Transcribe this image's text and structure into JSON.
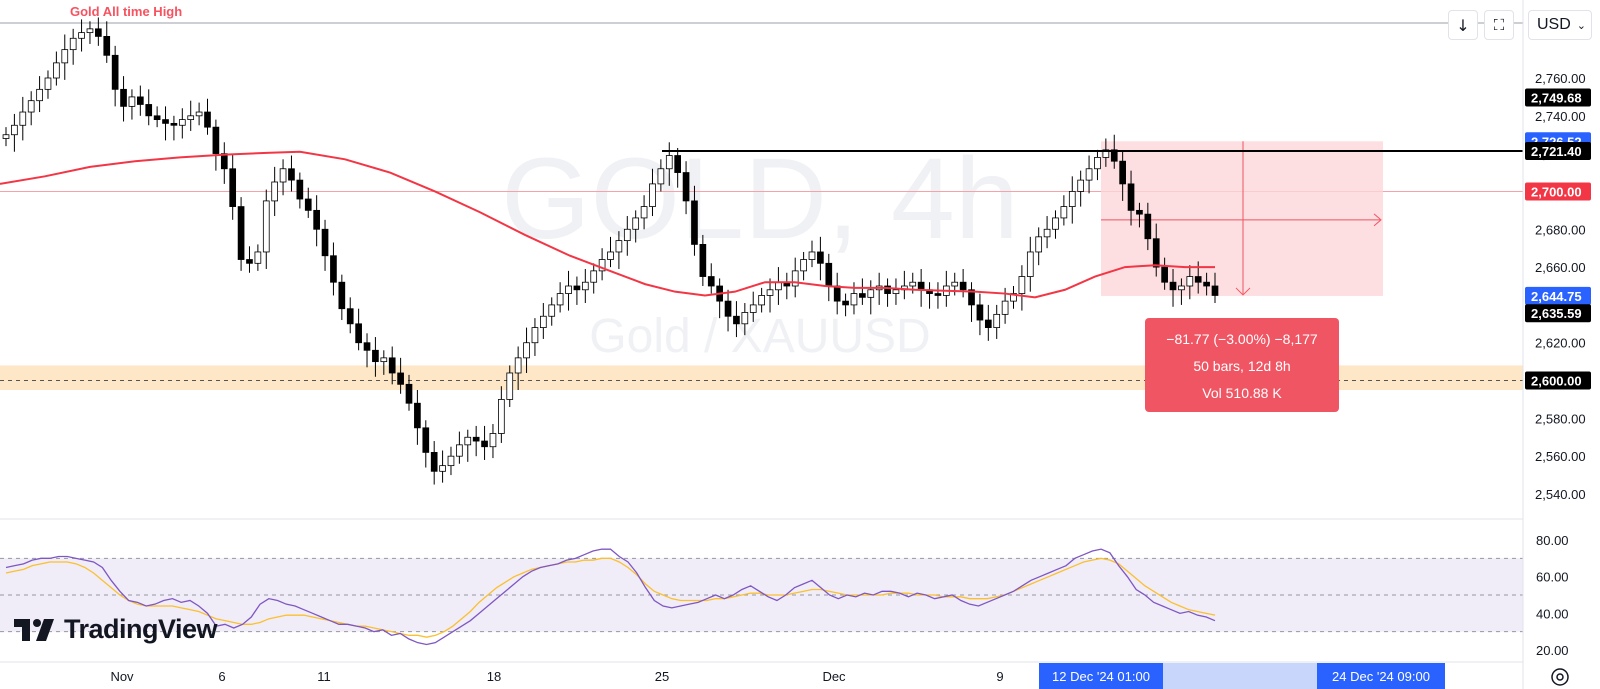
{
  "chart_data": {
    "type": "candlestick",
    "symbol_watermark": "GOLD, 4h",
    "watermark_subtitle": "Gold / XAUUSD",
    "currency": "USD",
    "price_ticks": [
      "2,760.00",
      "2,740.00",
      "2,720.00",
      "2,680.00",
      "2,660.00",
      "2,620.00",
      "2,580.00",
      "2,560.00",
      "2,540.00"
    ],
    "price_labels": [
      {
        "text": "2,749.68",
        "value": 2749.68,
        "bg": "#000000",
        "fg": "#ffffff"
      },
      {
        "text": "2,726.52",
        "value": 2726.52,
        "bg": "#2962ff",
        "fg": "#ffffff"
      },
      {
        "text": "2,721.40",
        "value": 2721.4,
        "bg": "#000000",
        "fg": "#ffffff"
      },
      {
        "text": "2,700.00",
        "value": 2700.0,
        "bg": "#f23645",
        "fg": "#ffffff"
      },
      {
        "text": "2,644.75",
        "value": 2644.75,
        "bg": "#2962ff",
        "fg": "#ffffff"
      },
      {
        "text": "2,635.59",
        "value": 2635.59,
        "bg": "#000000",
        "fg": "#ffffff"
      },
      {
        "text": "2,600.00",
        "value": 2600.0,
        "bg": "#000000",
        "fg": "#ffffff"
      }
    ],
    "time_ticks": [
      "Nov",
      "6",
      "11",
      "18",
      "25",
      "Dec",
      "9",
      "16"
    ],
    "time_labels": [
      "12 Dec '24   01:00",
      "24 Dec '24   09:00"
    ],
    "resistance_label": "Gold All time High",
    "resistance_level": 2721.4,
    "ath_level": 2790,
    "support_zone": [
      2595,
      2608
    ],
    "support_level": 2600,
    "horizontal_line": 2700,
    "measurement": {
      "line1": "−81.77 (−3.00%) −8,177",
      "line2": "50 bars, 12d 8h",
      "line3": "Vol 510.88 K"
    },
    "ma_period_note": "red moving average",
    "ma_points": [
      [
        0,
        2704
      ],
      [
        15,
        2708
      ],
      [
        30,
        2713
      ],
      [
        45,
        2716
      ],
      [
        60,
        2718
      ],
      [
        75,
        2719.5
      ],
      [
        90,
        2720.5
      ],
      [
        100,
        2721
      ],
      [
        115,
        2717
      ],
      [
        130,
        2710
      ],
      [
        145,
        2700
      ],
      [
        160,
        2689
      ],
      [
        175,
        2677
      ],
      [
        190,
        2666
      ],
      [
        205,
        2657
      ],
      [
        215,
        2651
      ],
      [
        225,
        2647
      ],
      [
        235,
        2645
      ],
      [
        245,
        2647
      ],
      [
        255,
        2652
      ],
      [
        265,
        2652
      ],
      [
        275,
        2650
      ],
      [
        285,
        2649
      ],
      [
        295,
        2649
      ],
      [
        305,
        2648
      ],
      [
        315,
        2647.5
      ],
      [
        325,
        2647
      ],
      [
        335,
        2646
      ],
      [
        345,
        2644
      ],
      [
        355,
        2648
      ],
      [
        365,
        2655
      ],
      [
        375,
        2660
      ],
      [
        385,
        2661
      ],
      [
        395,
        2660
      ],
      [
        405,
        2660
      ]
    ],
    "price_series": [
      2730,
      2735,
      2742,
      2748,
      2754,
      2760,
      2768,
      2775,
      2781,
      2784,
      2786,
      2782,
      2772,
      2754,
      2745,
      2750,
      2746,
      2740,
      2738,
      2736,
      2735,
      2738,
      2740,
      2742,
      2734,
      2720,
      2712,
      2692,
      2664,
      2662,
      2668,
      2695,
      2705,
      2712,
      2706,
      2696,
      2690,
      2680,
      2666,
      2652,
      2638,
      2630,
      2620,
      2616,
      2610,
      2612,
      2604,
      2598,
      2588,
      2575,
      2562,
      2552,
      2555,
      2560,
      2566,
      2570,
      2568,
      2565,
      2572,
      2590,
      2604,
      2612,
      2620,
      2628,
      2634,
      2640,
      2646,
      2650,
      2648,
      2652,
      2658,
      2664,
      2668,
      2674,
      2680,
      2686,
      2692,
      2704,
      2712,
      2719,
      2710,
      2695,
      2672,
      2655,
      2650,
      2642,
      2634,
      2630,
      2636,
      2640,
      2645,
      2648,
      2652,
      2650,
      2658,
      2664,
      2668,
      2662,
      2650,
      2642,
      2640,
      2646,
      2644,
      2648,
      2650,
      2646,
      2648,
      2650,
      2652,
      2648,
      2646,
      2645,
      2650,
      2652,
      2648,
      2640,
      2632,
      2628,
      2635,
      2642,
      2646,
      2655,
      2668,
      2676,
      2680,
      2686,
      2692,
      2700,
      2706,
      2712,
      2718,
      2722,
      2716,
      2704,
      2690,
      2688,
      2675,
      2660,
      2652,
      2648,
      2650,
      2655,
      2652,
      2650,
      2645
    ],
    "rsi": {
      "ticks": [
        "80.00",
        "60.00",
        "40.00",
        "20.00"
      ],
      "upper": 70,
      "middle": 50,
      "lower": 30,
      "values": [
        65,
        66,
        67,
        69,
        70,
        70,
        71,
        71,
        70,
        69,
        68,
        65,
        58,
        52,
        47,
        46,
        44,
        45,
        47,
        48,
        46,
        47,
        44,
        40,
        33,
        34,
        32,
        34,
        38,
        45,
        48,
        47,
        45,
        44,
        42,
        40,
        38,
        36,
        34,
        34,
        33,
        32,
        30,
        31,
        28,
        29,
        26,
        24,
        23,
        24,
        27,
        30,
        33,
        36,
        40,
        44,
        48,
        52,
        56,
        60,
        63,
        65,
        66,
        67,
        69,
        70,
        72,
        74,
        75,
        75,
        71,
        68,
        62,
        54,
        47,
        44,
        43,
        44,
        45,
        46,
        48,
        50,
        48,
        50,
        53,
        55,
        52,
        49,
        47,
        50,
        54,
        56,
        58,
        54,
        50,
        48,
        50,
        49,
        51,
        50,
        52,
        52,
        51,
        49,
        51,
        50,
        48,
        49,
        50,
        47,
        45,
        44,
        46,
        48,
        50,
        52,
        55,
        58,
        60,
        62,
        64,
        66,
        70,
        72,
        74,
        75,
        73,
        66,
        60,
        53,
        50,
        46,
        44,
        42,
        40,
        41,
        39,
        38,
        36
      ],
      "signal": [
        62,
        63,
        64,
        66,
        67,
        68,
        68,
        68,
        67,
        65,
        62,
        58,
        54,
        50,
        47,
        45,
        44,
        44,
        44,
        44,
        43,
        42,
        41,
        39,
        37,
        36,
        35,
        34,
        34,
        35,
        37,
        38,
        39,
        39,
        39,
        38,
        37,
        36,
        35,
        34,
        33,
        33,
        32,
        31,
        30,
        29,
        28,
        28,
        27,
        28,
        30,
        33,
        37,
        41,
        46,
        50,
        54,
        57,
        60,
        62,
        64,
        65,
        66,
        67,
        68,
        68,
        69,
        69,
        70,
        70,
        68,
        65,
        61,
        56,
        52,
        50,
        48,
        47,
        47,
        47,
        47,
        48,
        48,
        49,
        50,
        51,
        51,
        50,
        50,
        50,
        51,
        52,
        53,
        53,
        52,
        51,
        50,
        50,
        50,
        50,
        50,
        51,
        51,
        51,
        50,
        50,
        50,
        49,
        49,
        49,
        48,
        48,
        48,
        49,
        50,
        52,
        54,
        56,
        58,
        60,
        62,
        64,
        66,
        68,
        69,
        70,
        69,
        67,
        63,
        59,
        55,
        52,
        49,
        46,
        44,
        42,
        41,
        40,
        39
      ]
    }
  },
  "toolbar": {
    "currency_label": "USD",
    "currency_icon": "chevron-down-icon",
    "download_icon": "arrow-down-icon",
    "layout_icon": "maximize-icon"
  },
  "logo": {
    "text": "TradingView"
  },
  "colors": {
    "up": "#ffffff",
    "down": "#000000",
    "ma": "#f23645",
    "rsi": "#7e57c2",
    "rsi_signal": "#fbc02d",
    "support_zone": "#fde7c7",
    "measure_box": "#fcd6d9",
    "accent_blue": "#2962ff"
  }
}
